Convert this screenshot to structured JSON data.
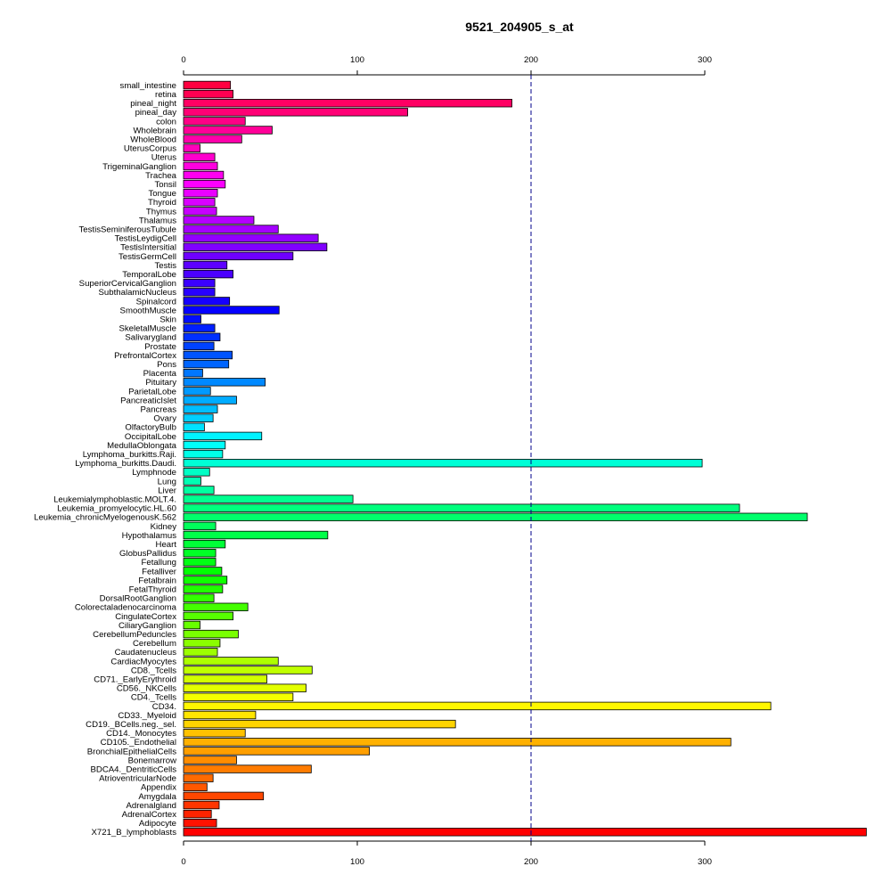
{
  "chart_data": {
    "type": "bar",
    "orientation": "horizontal",
    "title": "9521_204905_s_at",
    "xlabel": "",
    "ylabel": "",
    "xlim": [
      0,
      393
    ],
    "xticks": [
      0,
      100,
      200,
      300
    ],
    "reference_line": 200,
    "reference_line_color": "#00008b",
    "grid": false,
    "axes": [
      "top",
      "bottom"
    ],
    "categories": [
      "small_intestine",
      "retina",
      "pineal_night",
      "pineal_day",
      "colon",
      "Wholebrain",
      "WholeBlood",
      "UterusCorpus",
      "Uterus",
      "TrigeminalGanglion",
      "Trachea",
      "Tonsil",
      "Tongue",
      "Thyroid",
      "Thymus",
      "Thalamus",
      "TestisSeminiferousTubule",
      "TestisLeydigCell",
      "TestisIntersitial",
      "TestisGermCell",
      "Testis",
      "TemporalLobe",
      "SuperiorCervicalGanglion",
      "SubthalamicNucleus",
      "Spinalcord",
      "SmoothMuscle",
      "Skin",
      "SkeletalMuscle",
      "Salivarygland",
      "Prostate",
      "PrefrontalCortex",
      "Pons",
      "Placenta",
      "Pituitary",
      "ParietalLobe",
      "PancreaticIslet",
      "Pancreas",
      "Ovary",
      "OlfactoryBulb",
      "OccipitalLobe",
      "MedullaOblongata",
      "Lymphoma_burkitts.Raji.",
      "Lymphoma_burkitts.Daudi.",
      "Lymphnode",
      "Lung",
      "Liver",
      "Leukemialymphoblastic.MOLT.4.",
      "Leukemia_promyelocytic.HL.60",
      "Leukemia_chronicMyelogenousK.562",
      "Kidney",
      "Hypothalamus",
      "Heart",
      "GlobusPallidus",
      "Fetallung",
      "Fetalliver",
      "Fetalbrain",
      "FetalThyroid",
      "DorsalRootGanglion",
      "Colorectaladenocarcinoma",
      "CingulateCortex",
      "CiliaryGanglion",
      "CerebellumPeduncles",
      "Cerebellum",
      "Caudatenucleus",
      "CardiacMyocytes",
      "CD8._Tcells",
      "CD71._EarlyErythroid",
      "CD56._NKCells",
      "CD4._Tcells",
      "CD34.",
      "CD33._Myeloid",
      "CD19._BCells.neg._sel.",
      "CD14._Monocytes",
      "CD105._Endothelial",
      "BronchialEpithelialCells",
      "Bonemarrow",
      "BDCA4._DentriticCells",
      "AtrioventricularNode",
      "Appendix",
      "Amygdala",
      "Adrenalgland",
      "AdrenalCortex",
      "Adipocyte",
      "X721_B_lymphoblasts"
    ],
    "values": [
      27,
      28.5,
      189,
      129,
      35.5,
      51,
      33.5,
      9.5,
      18,
      19.5,
      23,
      24,
      19.5,
      18,
      19,
      40.5,
      54.5,
      77.5,
      82.5,
      63,
      25,
      28.5,
      18,
      18,
      26.5,
      55,
      10,
      18,
      21,
      17.5,
      28,
      26,
      11,
      47,
      15.5,
      30.5,
      19.5,
      17,
      12,
      45,
      24,
      22.5,
      298.5,
      15,
      10,
      17.5,
      97.5,
      320,
      359,
      18.5,
      83,
      24,
      18.5,
      18.5,
      22,
      25,
      22.5,
      17.5,
      37,
      28.5,
      9.5,
      31.5,
      21,
      19.5,
      54.5,
      74,
      48,
      70.5,
      63,
      338,
      41.5,
      156.5,
      35.5,
      315,
      107,
      30.5,
      73.5,
      17,
      13.5,
      46,
      20.5,
      16,
      19,
      393
    ]
  }
}
